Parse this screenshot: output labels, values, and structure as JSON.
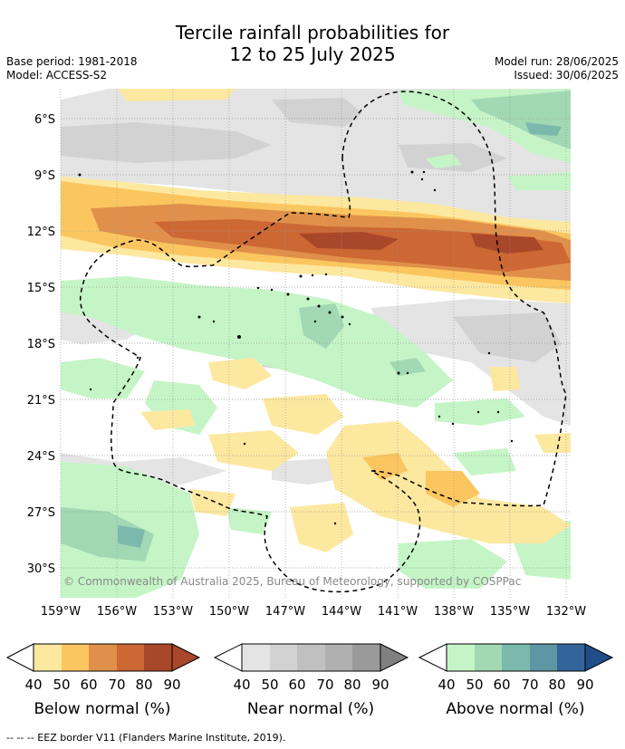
{
  "title": {
    "line1": "Tercile rainfall probabilities for",
    "line2": "12 to 25 July 2025"
  },
  "meta": {
    "base_period": "Base period: 1981-2018",
    "model": "Model: ACCESS-S2",
    "model_run": "Model run: 28/06/2025",
    "issued": "Issued: 30/06/2025"
  },
  "map": {
    "lat_labels": [
      "6°S",
      "9°S",
      "12°S",
      "15°S",
      "18°S",
      "21°S",
      "24°S",
      "27°S",
      "30°S"
    ],
    "lon_labels": [
      "159°W",
      "156°W",
      "153°W",
      "150°W",
      "147°W",
      "144°W",
      "141°W",
      "138°W",
      "135°W",
      "132°W"
    ],
    "copyright": "© Commonwealth of Australia 2025, Bureau of Meteorology, supported by COSPPac",
    "colors": {
      "below": [
        "#fde8a0",
        "#fbc65f",
        "#e0904a",
        "#cd6733",
        "#a9472a"
      ],
      "near": [
        "#e4e4e4",
        "#d2d2d2",
        "#c0c0c0",
        "#b0b0b0",
        "#9a9a9a"
      ],
      "above": [
        "#c5f5c6",
        "#a2d8b3",
        "#7bb9ad",
        "#5d97a3",
        "#33659a"
      ]
    }
  },
  "colorbars": [
    {
      "title": "Below normal (%)",
      "ticks": [
        "40",
        "50",
        "60",
        "70",
        "80",
        "90"
      ],
      "colors": [
        "#fde8a0",
        "#fbc65f",
        "#e0904a",
        "#cd6733",
        "#a9472a"
      ]
    },
    {
      "title": "Near normal (%)",
      "ticks": [
        "40",
        "50",
        "60",
        "70",
        "80",
        "90"
      ],
      "colors": [
        "#e4e4e4",
        "#d2d2d2",
        "#c0c0c0",
        "#b0b0b0",
        "#9a9a9a"
      ]
    },
    {
      "title": "Above normal (%)",
      "ticks": [
        "40",
        "50",
        "60",
        "70",
        "80",
        "90"
      ],
      "colors": [
        "#c5f5c6",
        "#a2d8b3",
        "#7bb9ad",
        "#5d97a3",
        "#33659a"
      ]
    }
  ],
  "footnote": "--  --  -- EEZ border V11 (Flanders Marine Institute, 2019)."
}
